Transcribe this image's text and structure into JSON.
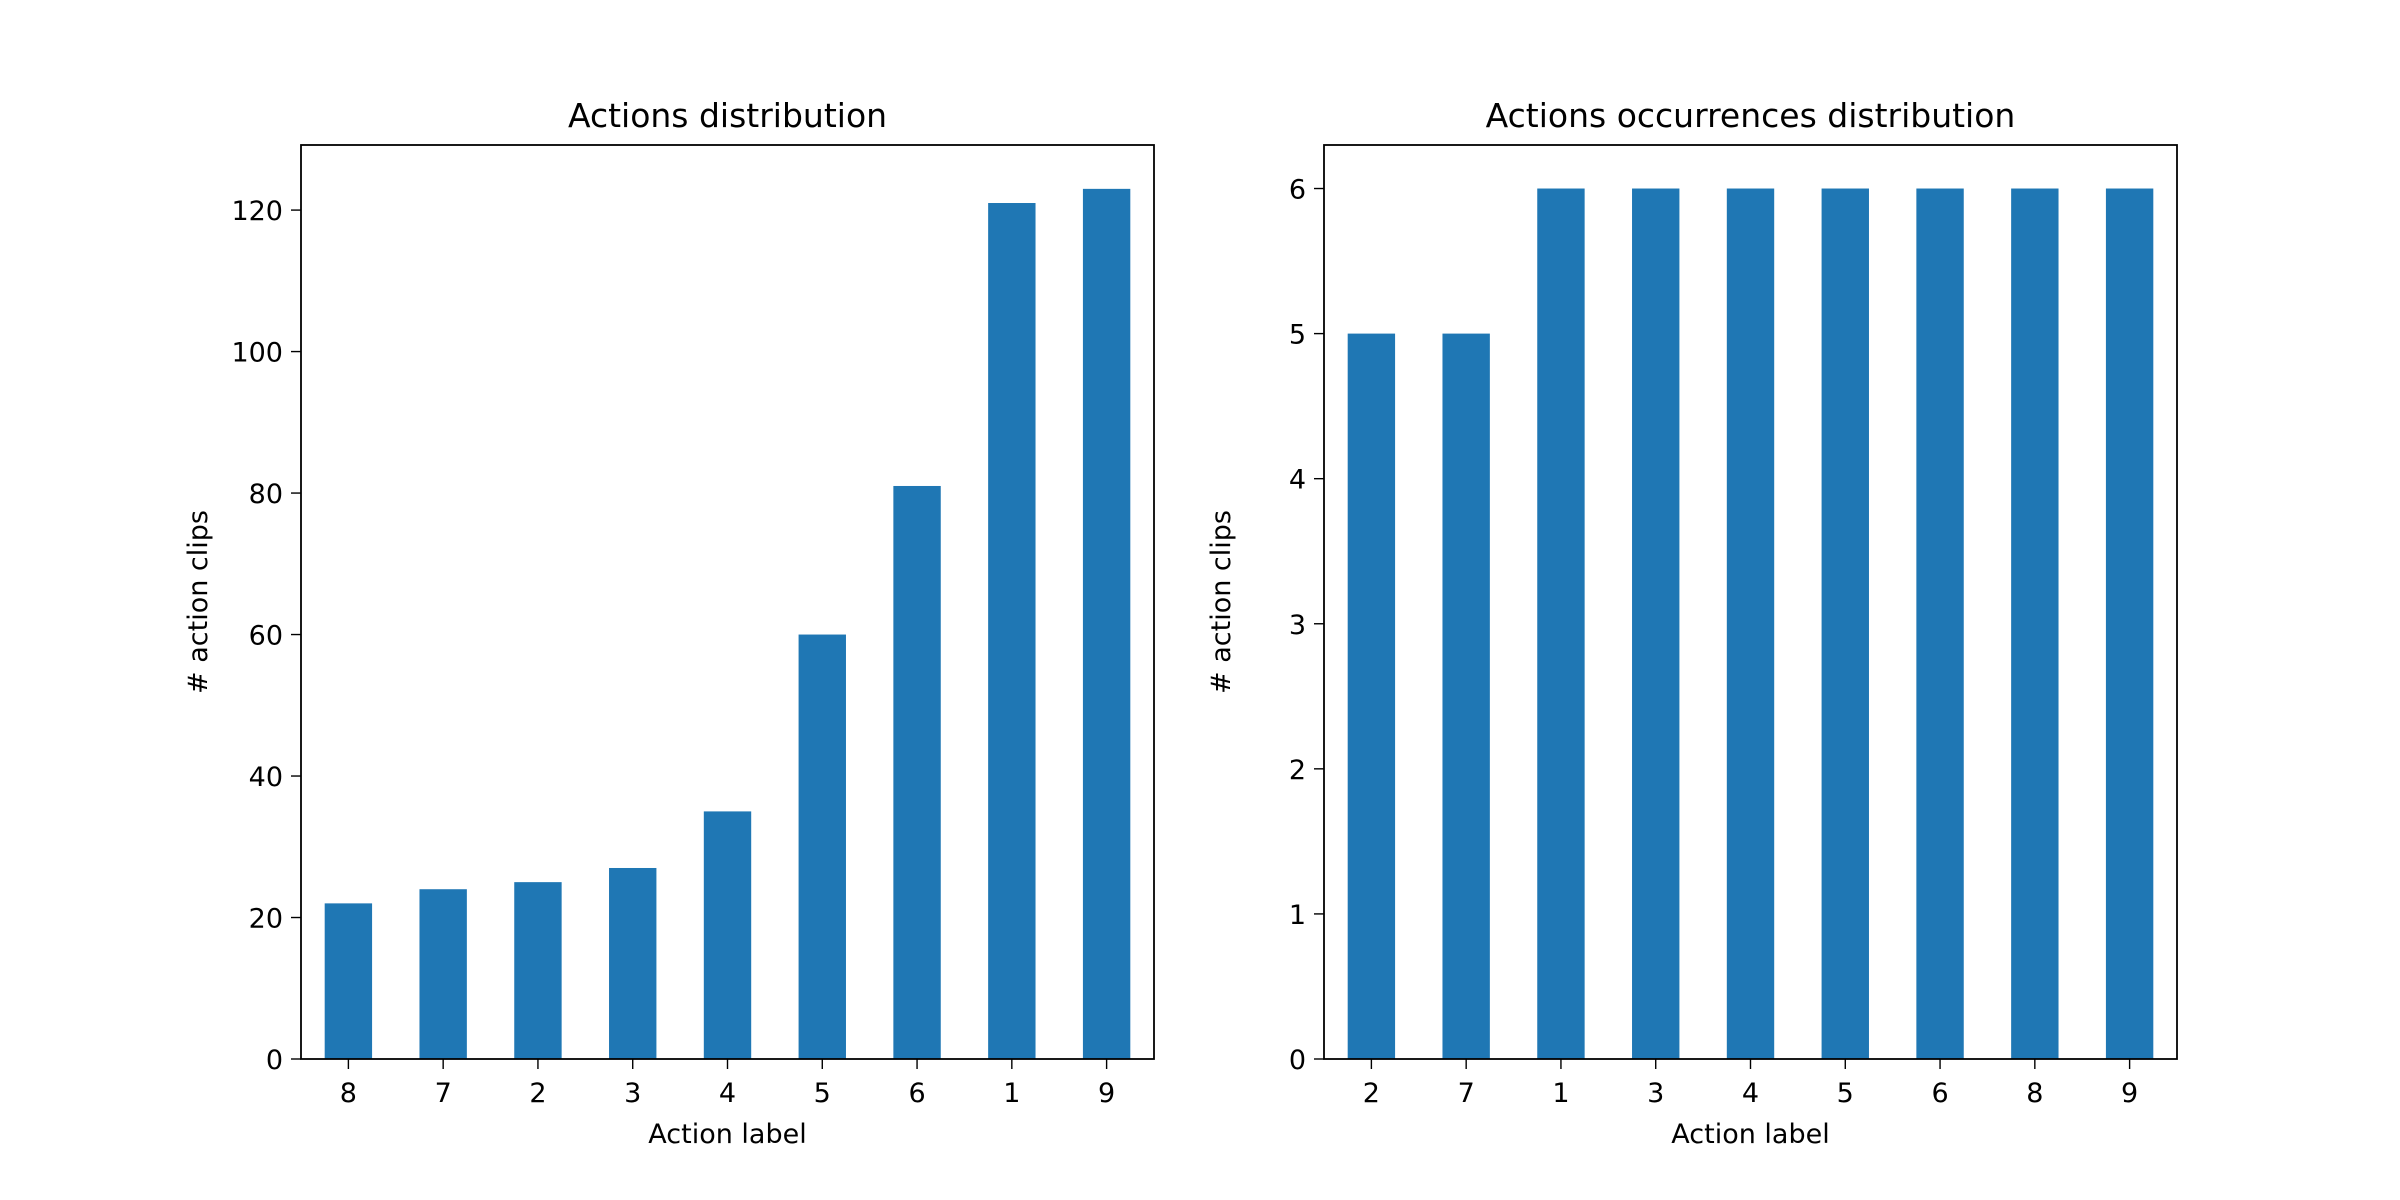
{
  "chart_data": [
    {
      "type": "bar",
      "title": "Actions distribution",
      "xlabel": "Action label",
      "ylabel": "# action clips",
      "categories": [
        "8",
        "7",
        "2",
        "3",
        "4",
        "5",
        "6",
        "1",
        "9"
      ],
      "values": [
        22,
        24,
        25,
        27,
        35,
        60,
        81,
        121,
        123
      ],
      "ylim": [
        0,
        129.2
      ],
      "yticks": [
        0,
        20,
        40,
        60,
        80,
        100,
        120
      ],
      "bar_color": "#1f77b4",
      "grid": false
    },
    {
      "type": "bar",
      "title": "Actions occurrences distribution",
      "xlabel": "Action label",
      "ylabel": "# action clips",
      "categories": [
        "2",
        "7",
        "1",
        "3",
        "4",
        "5",
        "6",
        "8",
        "9"
      ],
      "values": [
        5,
        5,
        6,
        6,
        6,
        6,
        6,
        6,
        6
      ],
      "ylim": [
        0,
        6.3
      ],
      "yticks": [
        0,
        1,
        2,
        3,
        4,
        5,
        6
      ],
      "bar_color": "#1f77b4",
      "grid": false
    }
  ]
}
